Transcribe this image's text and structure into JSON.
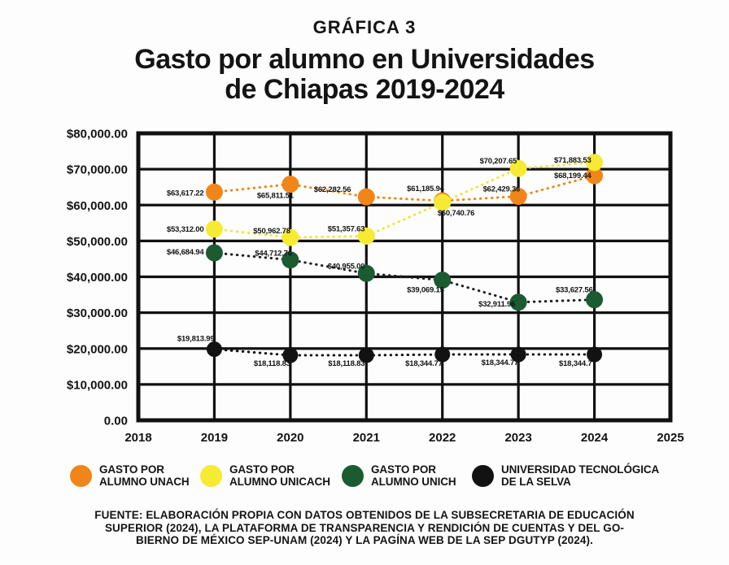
{
  "header": {
    "pretitle": "GRÁFICA 3",
    "title_line1": "Gasto por alumno en Universidades",
    "title_line2": "de Chiapas 2019-2024"
  },
  "chart_data": {
    "type": "line",
    "title": "Gasto por alumno en Universidades de Chiapas 2019-2024",
    "x": [
      2019,
      2020,
      2021,
      2022,
      2023,
      2024
    ],
    "xlim": [
      2018,
      2025
    ],
    "ylim": [
      0,
      80000
    ],
    "grid": true,
    "legend_position": "bottom",
    "x_axis_ticks": [
      "2018",
      "2019",
      "2020",
      "2021",
      "2022",
      "2023",
      "2024",
      "2025"
    ],
    "y_axis_ticks": [
      "$80,000.00",
      "$70,000.00",
      "$60,000.00",
      "$50,000.00",
      "$40,000.00",
      "$30,000.00",
      "$20,000.00",
      "$10,000.00",
      "0.00"
    ],
    "series": [
      {
        "name": "GASTO POR ALUMNO UNACH",
        "color": "#F0861A",
        "line_color": "#F0861A",
        "values": [
          63617.22,
          65811.51,
          62282.56,
          61185.94,
          62429.36,
          68199.44
        ],
        "labels": [
          "$63,617.22",
          "$65,811.51",
          "$62,282.56",
          "$61,185.94",
          "$62,429.36",
          "$68,199.44"
        ]
      },
      {
        "name": "GASTO POR ALUMNO UNICACH",
        "color": "#F7EA33",
        "line_color": "#EFE63C",
        "values": [
          53312.0,
          50962.78,
          51357.63,
          60740.76,
          70207.65,
          71883.53
        ],
        "labels": [
          "$53,312.00",
          "$50,962.78",
          "$51,357.63",
          "$60,740.76",
          "$70,207.65",
          "$71,883.53"
        ]
      },
      {
        "name": "GASTO POR ALUMNO UNICH",
        "color": "#1A5B30",
        "line_color": "#1d1d1b",
        "values": [
          46684.94,
          44712.76,
          40955.0,
          39069.15,
          32911.96,
          33627.56
        ],
        "labels": [
          "$46,684.94",
          "$44,712.76",
          "$40,955.00",
          "$39,069.15",
          "$32,911.96",
          "$33,627.56"
        ]
      },
      {
        "name": "UNIVERSIDAD TECNOLÓGICA DE LA SELVA",
        "color": "#121212",
        "line_color": "#121212",
        "values": [
          19813.99,
          18118.83,
          18118.83,
          18344.77,
          18344.77,
          18344.77
        ],
        "labels": [
          "$19,813.99",
          "$18,118.83",
          "$18,118.83",
          "$18,344.77",
          "$18,344.77",
          "$18,344.77"
        ]
      }
    ]
  },
  "legend": {
    "items": [
      {
        "line1": "GASTO POR",
        "line2": "ALUMNO UNACH",
        "color": "#F0861A"
      },
      {
        "line1": "GASTO POR",
        "line2": "ALUMNO UNICACH",
        "color": "#F7EA33"
      },
      {
        "line1": "GASTO POR",
        "line2": "ALUMNO UNICH",
        "color": "#1A5B30"
      },
      {
        "line1": "UNIVERSIDAD TECNOLÓGICA",
        "line2": "DE LA SELVA",
        "color": "#121212"
      }
    ]
  },
  "footer": {
    "line1": "FUENTE:  ELABORACIÓN PROPIA CON DATOS OBTENIDOS DE LA SUBSECRETARIA DE EDUCACIÓN",
    "line2": "SUPERIOR (2024), LA PLATAFORMA DE TRANSPARENCIA Y RENDICIÓN DE CUENTAS Y DEL GO-",
    "line3": "BIERNO DE MÉXICO SEP-UNAM (2024) Y LA PAGÍNA WEB DE LA SEP DGUTYP (2024)."
  }
}
